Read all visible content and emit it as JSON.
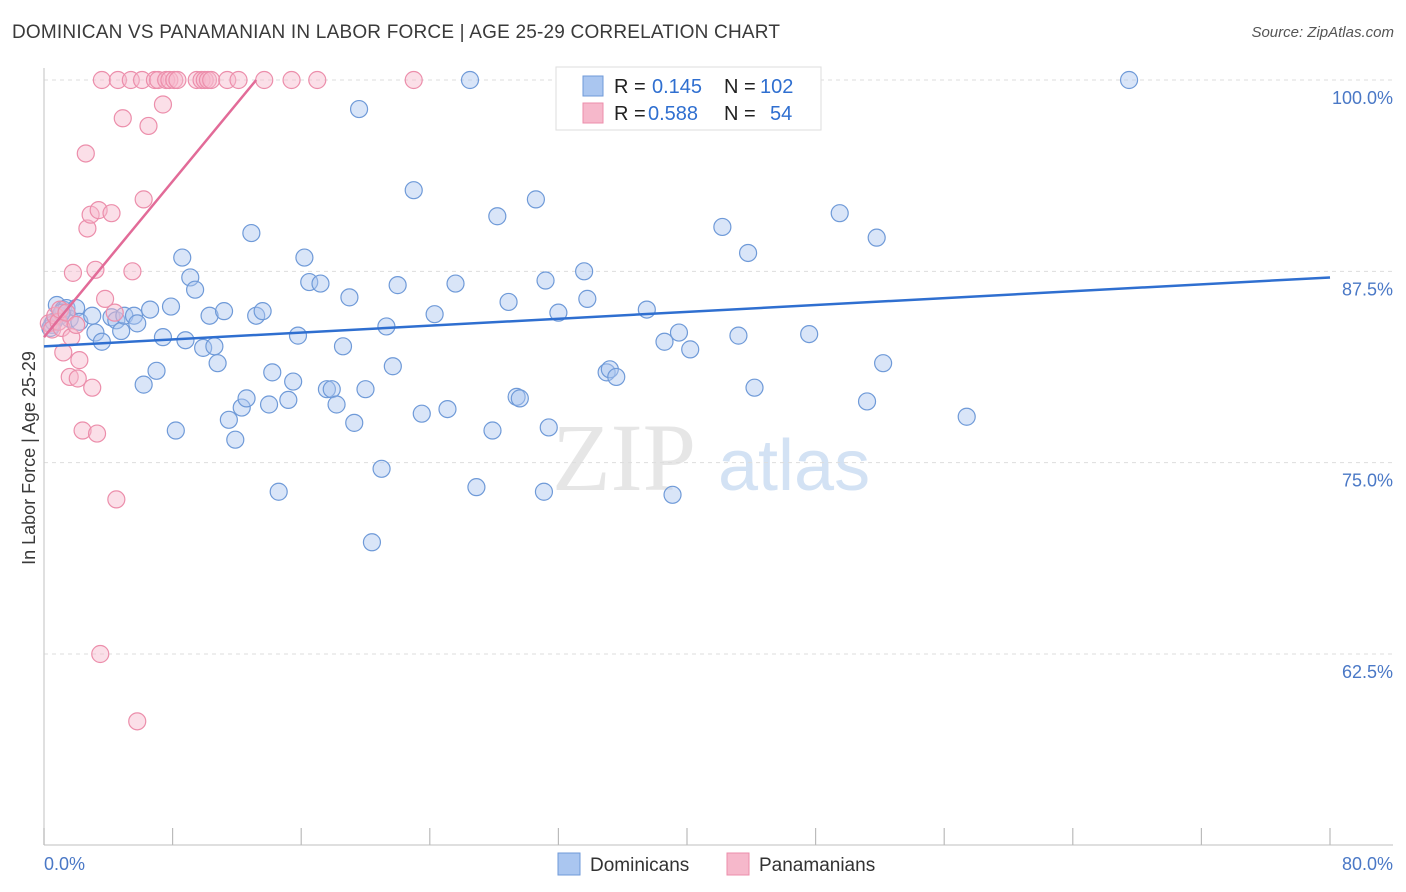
{
  "title": "DOMINICAN VS PANAMANIAN IN LABOR FORCE | AGE 25-29 CORRELATION CHART",
  "source": "Source: ZipAtlas.com",
  "watermark": {
    "zip": "ZIP",
    "atlas": "atlas"
  },
  "colors": {
    "blue_fill": "#aac6f0",
    "blue_stroke": "#6f9ad8",
    "blue_line": "#2f6fd0",
    "pink_fill": "#f6b8cb",
    "pink_stroke": "#ec8eab",
    "pink_line": "#e26b98",
    "grid": "#dddddd",
    "axis_text": "#4a78c6"
  },
  "legend": {
    "r_label": "R =",
    "n_label": "N =",
    "items": [
      {
        "r": "0.145",
        "n": "102",
        "color": "blue"
      },
      {
        "r": "0.588",
        "n": "54",
        "color": "pink"
      }
    ]
  },
  "bottom_legend": [
    "Dominicans",
    "Panamanians"
  ],
  "chart_data": {
    "type": "scatter",
    "title": "DOMINICAN VS PANAMANIAN IN LABOR FORCE | AGE 25-29 CORRELATION CHART",
    "xlabel": "",
    "ylabel": "In Labor Force | Age 25-29",
    "xlim": [
      0,
      80
    ],
    "ylim": [
      50,
      101
    ],
    "x_tick_labels": [
      "0.0%",
      "80.0%"
    ],
    "y_ticks": [
      62.5,
      75.0,
      87.5,
      100.0
    ],
    "y_tick_labels": [
      "62.5%",
      "75.0%",
      "87.5%",
      "100.0%"
    ],
    "series": [
      {
        "name": "Dominicans",
        "color": "blue",
        "trend": {
          "x": [
            0,
            80
          ],
          "y": [
            82.6,
            87.1
          ]
        },
        "points": [
          [
            0.5,
            84.0
          ],
          [
            0.8,
            85.3
          ],
          [
            1.0,
            84.6
          ],
          [
            1.2,
            85.0
          ],
          [
            1.4,
            85.1
          ],
          [
            1.6,
            84.4
          ],
          [
            2.0,
            85.1
          ],
          [
            2.2,
            84.2
          ],
          [
            3.0,
            84.6
          ],
          [
            3.2,
            83.5
          ],
          [
            3.6,
            82.9
          ],
          [
            4.2,
            84.5
          ],
          [
            4.5,
            84.3
          ],
          [
            4.8,
            83.6
          ],
          [
            5.0,
            84.6
          ],
          [
            5.6,
            84.6
          ],
          [
            5.8,
            84.1
          ],
          [
            6.2,
            80.1
          ],
          [
            6.6,
            85.0
          ],
          [
            7.0,
            81.0
          ],
          [
            7.4,
            83.2
          ],
          [
            7.9,
            85.2
          ],
          [
            8.2,
            77.1
          ],
          [
            8.6,
            88.4
          ],
          [
            8.8,
            83.0
          ],
          [
            9.1,
            87.1
          ],
          [
            9.4,
            86.3
          ],
          [
            9.9,
            82.5
          ],
          [
            10.3,
            84.6
          ],
          [
            10.6,
            82.6
          ],
          [
            10.8,
            81.5
          ],
          [
            11.2,
            84.9
          ],
          [
            11.5,
            77.8
          ],
          [
            11.9,
            76.5
          ],
          [
            12.3,
            78.6
          ],
          [
            12.6,
            79.2
          ],
          [
            12.9,
            90.0
          ],
          [
            13.2,
            84.6
          ],
          [
            13.6,
            84.9
          ],
          [
            14.0,
            78.8
          ],
          [
            14.2,
            80.9
          ],
          [
            14.6,
            73.1
          ],
          [
            15.2,
            79.1
          ],
          [
            15.5,
            80.3
          ],
          [
            15.8,
            83.3
          ],
          [
            16.2,
            88.4
          ],
          [
            16.5,
            86.8
          ],
          [
            17.2,
            86.7
          ],
          [
            17.6,
            79.8
          ],
          [
            17.9,
            79.8
          ],
          [
            18.2,
            78.8
          ],
          [
            18.6,
            82.6
          ],
          [
            19.0,
            85.8
          ],
          [
            19.3,
            77.6
          ],
          [
            19.6,
            98.1
          ],
          [
            20.0,
            79.8
          ],
          [
            20.4,
            69.8
          ],
          [
            21.0,
            74.6
          ],
          [
            21.3,
            83.9
          ],
          [
            21.7,
            81.3
          ],
          [
            22.0,
            86.6
          ],
          [
            23.0,
            92.8
          ],
          [
            23.5,
            78.2
          ],
          [
            24.3,
            84.7
          ],
          [
            25.1,
            78.5
          ],
          [
            25.6,
            86.7
          ],
          [
            26.5,
            100.0
          ],
          [
            26.9,
            73.4
          ],
          [
            27.9,
            77.1
          ],
          [
            28.2,
            91.1
          ],
          [
            28.9,
            85.5
          ],
          [
            29.4,
            79.3
          ],
          [
            29.6,
            79.2
          ],
          [
            30.6,
            92.2
          ],
          [
            31.1,
            73.1
          ],
          [
            31.2,
            86.9
          ],
          [
            31.4,
            77.3
          ],
          [
            32.0,
            84.8
          ],
          [
            33.6,
            87.5
          ],
          [
            33.8,
            85.7
          ],
          [
            35.0,
            80.9
          ],
          [
            35.2,
            81.1
          ],
          [
            35.6,
            80.6
          ],
          [
            37.5,
            85.0
          ],
          [
            38.6,
            82.9
          ],
          [
            39.1,
            72.9
          ],
          [
            39.5,
            83.5
          ],
          [
            40.2,
            82.4
          ],
          [
            42.2,
            90.4
          ],
          [
            43.2,
            83.3
          ],
          [
            44.2,
            79.9
          ],
          [
            43.8,
            88.7
          ],
          [
            47.6,
            83.4
          ],
          [
            49.5,
            91.3
          ],
          [
            51.2,
            79.0
          ],
          [
            51.8,
            89.7
          ],
          [
            52.2,
            81.5
          ],
          [
            57.4,
            78.0
          ],
          [
            67.5,
            100.0
          ],
          [
            0.4,
            83.8
          ],
          [
            0.6,
            84.2
          ],
          [
            1.1,
            84.8
          ]
        ]
      },
      {
        "name": "Panamanians",
        "color": "pink",
        "trend": {
          "x": [
            0,
            13.2
          ],
          "y": [
            83.2,
            100.0
          ]
        },
        "points": [
          [
            0.3,
            84.1
          ],
          [
            0.5,
            83.7
          ],
          [
            0.7,
            84.6
          ],
          [
            0.9,
            84.2
          ],
          [
            1.0,
            85.0
          ],
          [
            1.1,
            83.8
          ],
          [
            1.2,
            82.2
          ],
          [
            1.4,
            84.8
          ],
          [
            1.6,
            80.6
          ],
          [
            1.7,
            83.2
          ],
          [
            1.8,
            87.4
          ],
          [
            2.0,
            84.0
          ],
          [
            2.1,
            80.5
          ],
          [
            2.2,
            81.7
          ],
          [
            2.4,
            77.1
          ],
          [
            2.6,
            95.2
          ],
          [
            2.7,
            90.3
          ],
          [
            2.9,
            91.2
          ],
          [
            3.0,
            79.9
          ],
          [
            3.2,
            87.6
          ],
          [
            3.3,
            76.9
          ],
          [
            3.4,
            91.5
          ],
          [
            3.5,
            62.5
          ],
          [
            3.6,
            100.0
          ],
          [
            3.8,
            85.7
          ],
          [
            4.2,
            91.3
          ],
          [
            4.4,
            84.8
          ],
          [
            4.5,
            72.6
          ],
          [
            4.6,
            100.0
          ],
          [
            4.9,
            97.5
          ],
          [
            5.4,
            100.0
          ],
          [
            5.5,
            87.5
          ],
          [
            6.1,
            100.0
          ],
          [
            6.2,
            92.2
          ],
          [
            6.5,
            97.0
          ],
          [
            6.9,
            100.0
          ],
          [
            7.1,
            100.0
          ],
          [
            7.4,
            98.4
          ],
          [
            7.6,
            100.0
          ],
          [
            7.8,
            100.0
          ],
          [
            8.1,
            100.0
          ],
          [
            8.3,
            100.0
          ],
          [
            9.5,
            100.0
          ],
          [
            9.8,
            100.0
          ],
          [
            10.0,
            100.0
          ],
          [
            10.2,
            100.0
          ],
          [
            10.4,
            100.0
          ],
          [
            11.4,
            100.0
          ],
          [
            12.1,
            100.0
          ],
          [
            13.7,
            100.0
          ],
          [
            15.4,
            100.0
          ],
          [
            17.0,
            100.0
          ],
          [
            23.0,
            100.0
          ],
          [
            5.8,
            58.1
          ]
        ]
      }
    ]
  }
}
